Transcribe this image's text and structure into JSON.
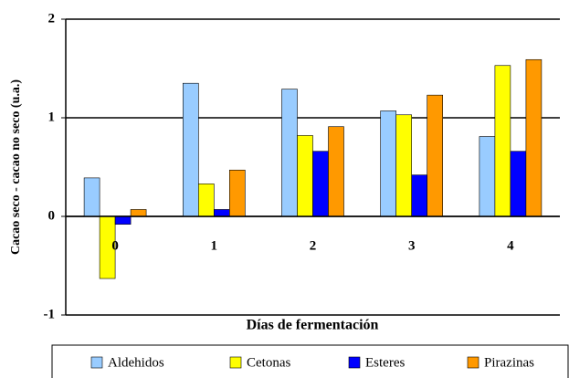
{
  "chart_data": {
    "type": "bar",
    "x_label": "Días de fermentación",
    "y_label": "Cacao seco - cacao no seco (u.a.)",
    "categories": [
      "0",
      "1",
      "2",
      "3",
      "4"
    ],
    "series": [
      {
        "name": "Aldehidos",
        "color": "#99ccff",
        "values": [
          0.39,
          1.35,
          1.29,
          1.07,
          0.81
        ]
      },
      {
        "name": "Cetonas",
        "color": "#ffff00",
        "values": [
          -0.63,
          0.33,
          0.82,
          1.03,
          1.53
        ]
      },
      {
        "name": "Esteres",
        "color": "#0000ff",
        "values": [
          -0.08,
          0.07,
          0.66,
          0.42,
          0.66
        ]
      },
      {
        "name": "Pirazinas",
        "color": "#ff9900",
        "values": [
          0.07,
          0.47,
          0.91,
          1.23,
          1.59
        ]
      }
    ],
    "ylim": [
      -1,
      2
    ],
    "yticks": [
      -1,
      0,
      1,
      2
    ],
    "grid": true,
    "legend": "bottom"
  }
}
